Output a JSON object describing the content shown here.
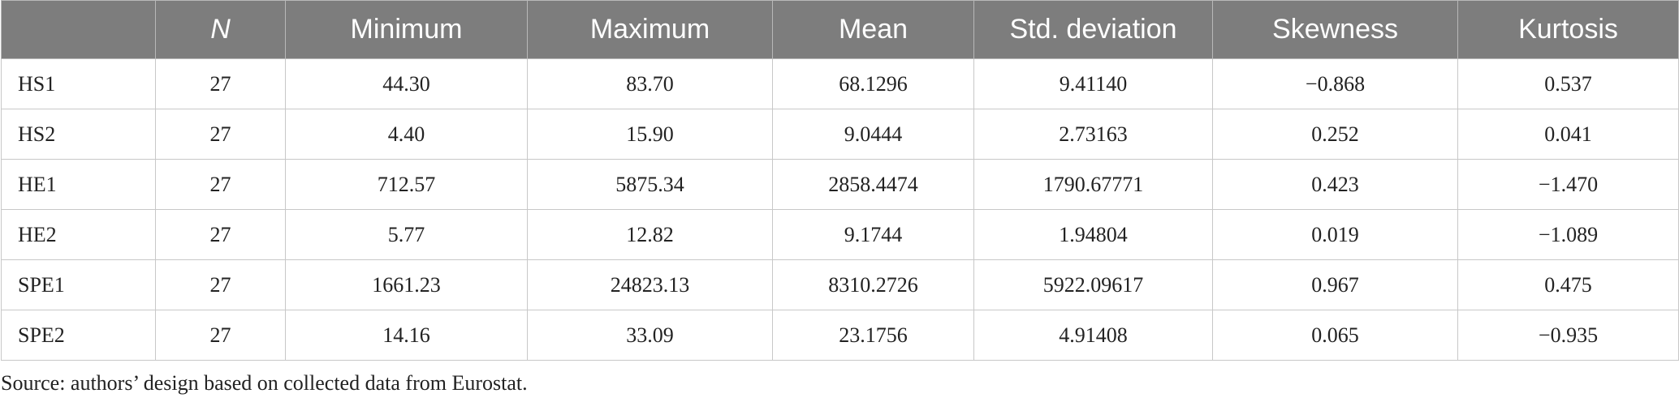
{
  "table": {
    "columns": [
      "N",
      "Minimum",
      "Maximum",
      "Mean",
      "Std. deviation",
      "Skewness",
      "Kurtosis"
    ],
    "rows": [
      {
        "label": "HS1",
        "cells": [
          "27",
          "44.30",
          "83.70",
          "68.1296",
          "9.41140",
          "−0.868",
          "0.537"
        ]
      },
      {
        "label": "HS2",
        "cells": [
          "27",
          "4.40",
          "15.90",
          "9.0444",
          "2.73163",
          "0.252",
          "0.041"
        ]
      },
      {
        "label": "HE1",
        "cells": [
          "27",
          "712.57",
          "5875.34",
          "2858.4474",
          "1790.67771",
          "0.423",
          "−1.470"
        ]
      },
      {
        "label": "HE2",
        "cells": [
          "27",
          "5.77",
          "12.82",
          "9.1744",
          "1.94804",
          "0.019",
          "−1.089"
        ]
      },
      {
        "label": "SPE1",
        "cells": [
          "27",
          "1661.23",
          "24823.13",
          "8310.2726",
          "5922.09617",
          "0.967",
          "0.475"
        ]
      },
      {
        "label": "SPE2",
        "cells": [
          "27",
          "14.16",
          "33.09",
          "23.1756",
          "4.91408",
          "0.065",
          "−0.935"
        ]
      }
    ],
    "note": "Source: authors’ design based on collected data from Eurostat."
  }
}
